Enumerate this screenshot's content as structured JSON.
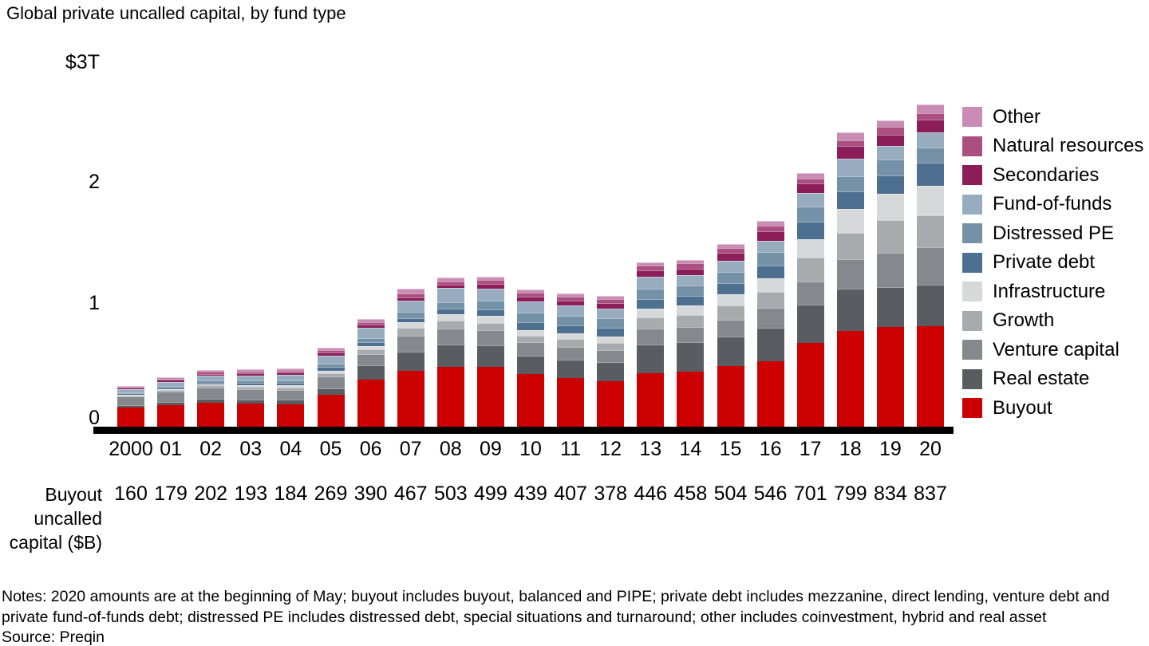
{
  "title": "Global private uncalled capital, by fund type",
  "y_axis": {
    "ticks": [
      "$3T",
      "2",
      "1",
      "0"
    ]
  },
  "buyout_row": {
    "label_lines": [
      "Buyout",
      "uncalled",
      "capital ($B)"
    ]
  },
  "notes": {
    "line1": "Notes: 2020 amounts are at the beginning of May; buyout includes buyout, balanced and PIPE; private debt includes mezzanine, direct lending, venture debt and",
    "line2": "private fund-of-funds debt; distressed PE includes distressed debt, special situations and turnaround; other includes coinvestment, hybrid and real asset",
    "source": "Source: Preqin"
  },
  "chart_data": {
    "type": "bar",
    "subtype": "stacked-vertical",
    "title": "Global private uncalled capital, by fund type",
    "unit": "$B",
    "ylabel": "$3T",
    "ylim_trillions": [
      0,
      3
    ],
    "y_ticks_trillions": [
      0,
      1,
      2,
      3
    ],
    "grid": false,
    "legend_position": "right",
    "categories": [
      "2000",
      "01",
      "02",
      "03",
      "04",
      "05",
      "06",
      "07",
      "08",
      "09",
      "10",
      "11",
      "12",
      "13",
      "14",
      "15",
      "16",
      "17",
      "18",
      "19",
      "20"
    ],
    "series": [
      {
        "name": "Buyout",
        "color": "#cc0000",
        "values": [
          160,
          179,
          202,
          193,
          184,
          269,
          390,
          467,
          503,
          499,
          439,
          407,
          378,
          446,
          458,
          504,
          546,
          701,
          799,
          834,
          837
        ]
      },
      {
        "name": "Real estate",
        "color": "#595d62",
        "values": [
          20,
          27,
          30,
          34,
          45,
          54,
          122,
          162,
          182,
          182,
          155,
          155,
          162,
          244,
          250,
          250,
          284,
          318,
          352,
          331,
          352
        ]
      },
      {
        "name": "Venture capital",
        "color": "#85888c",
        "values": [
          74,
          88,
          95,
          88,
          81,
          100,
          95,
          128,
          135,
          128,
          115,
          108,
          101,
          128,
          128,
          142,
          162,
          196,
          250,
          291,
          311
        ]
      },
      {
        "name": "Growth",
        "color": "#a8abae",
        "values": [
          10,
          14,
          20,
          20,
          20,
          27,
          41,
          68,
          68,
          61,
          54,
          61,
          61,
          95,
          95,
          115,
          135,
          196,
          216,
          270,
          264
        ]
      },
      {
        "name": "Infrastructure",
        "color": "#d6d8da",
        "values": [
          5,
          7,
          7,
          10,
          14,
          20,
          27,
          47,
          54,
          54,
          47,
          47,
          54,
          74,
          81,
          95,
          115,
          156,
          203,
          223,
          250
        ]
      },
      {
        "name": "Private debt",
        "color": "#4d7090",
        "values": [
          10,
          14,
          14,
          20,
          20,
          27,
          34,
          34,
          47,
          54,
          61,
          68,
          68,
          81,
          81,
          95,
          108,
          149,
          149,
          150,
          196
        ]
      },
      {
        "name": "Distressed PE",
        "color": "#7591a8",
        "values": [
          10,
          14,
          20,
          20,
          20,
          27,
          34,
          54,
          54,
          74,
          81,
          81,
          81,
          88,
          88,
          95,
          108,
          122,
          122,
          135,
          122
        ]
      },
      {
        "name": "Fund-of-funds",
        "color": "#97acbf",
        "values": [
          27,
          34,
          41,
          41,
          47,
          68,
          81,
          95,
          115,
          101,
          95,
          88,
          81,
          95,
          88,
          88,
          95,
          115,
          149,
          115,
          128
        ]
      },
      {
        "name": "Secondaries",
        "color": "#8c1d59",
        "values": [
          10,
          14,
          14,
          20,
          20,
          25,
          27,
          27,
          27,
          41,
          41,
          41,
          47,
          54,
          54,
          68,
          81,
          81,
          108,
          88,
          108
        ]
      },
      {
        "name": "Natural resources",
        "color": "#ab4e80",
        "values": [
          7,
          10,
          14,
          14,
          14,
          20,
          20,
          34,
          27,
          34,
          34,
          34,
          34,
          41,
          41,
          41,
          47,
          41,
          47,
          68,
          54
        ]
      },
      {
        "name": "Other",
        "color": "#c98cb4",
        "values": [
          10,
          14,
          14,
          20,
          20,
          25,
          27,
          41,
          34,
          27,
          27,
          27,
          27,
          27,
          27,
          34,
          40,
          47,
          68,
          54,
          74
        ]
      }
    ]
  }
}
